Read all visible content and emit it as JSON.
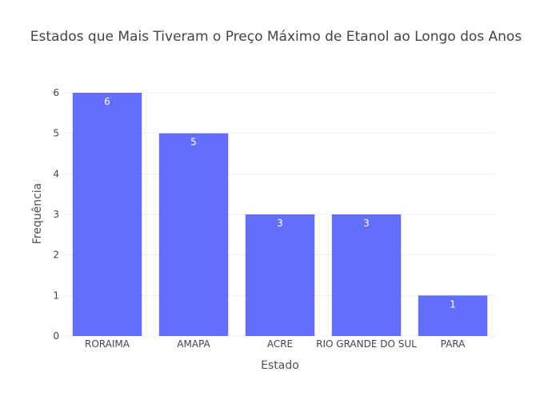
{
  "chart_data": {
    "type": "bar",
    "title": "Estados que Mais Tiveram o Preço Máximo de Etanol ao Longo dos Anos",
    "xlabel": "Estado",
    "ylabel": "Frequência",
    "categories": [
      "RORAIMA",
      "AMAPA",
      "ACRE",
      "RIO GRANDE DO SUL",
      "PARA"
    ],
    "values": [
      6,
      5,
      3,
      3,
      1
    ],
    "ylim": [
      0,
      6
    ],
    "yticks": [
      0,
      1,
      2,
      3,
      4,
      5,
      6
    ],
    "grid": true,
    "bar_color": "#636efa",
    "label_color": "#ffffff"
  }
}
